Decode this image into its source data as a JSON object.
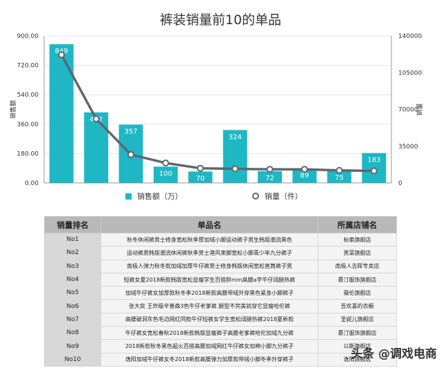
{
  "title": "裤装销量前10的单品",
  "colors": {
    "bar": "#1fb7c4",
    "line": "#5f6670",
    "axis": "#999999"
  },
  "chart_data": {
    "type": "bar",
    "title": "裤装销量前10的单品",
    "categories": [
      "No1",
      "No2",
      "No3",
      "No4",
      "No5",
      "No6",
      "No7",
      "No8",
      "No9",
      "No10"
    ],
    "series": [
      {
        "name": "销售额（万）",
        "type": "bar",
        "axis": "left",
        "values": [
          849,
          432,
          357,
          100,
          70,
          324,
          72,
          89,
          75,
          183
        ]
      },
      {
        "name": "销量（件）",
        "type": "line",
        "axis": "right",
        "values": [
          122000,
          61000,
          27000,
          19000,
          14000,
          13500,
          13000,
          13000,
          12000,
          11500
        ]
      }
    ],
    "ylabel": "销售额",
    "y2label": "销量",
    "ylim": [
      0,
      900
    ],
    "y2lim": [
      0,
      140000
    ],
    "yticks": [
      "0.00",
      "180.00",
      "360.00",
      "540.00",
      "720.00",
      "900.00"
    ],
    "y2ticks": [
      "0",
      "35000",
      "70000",
      "105000",
      "140000"
    ],
    "legend": "bottom"
  },
  "table": {
    "headers": [
      "销量排名",
      "单品名",
      "所属店铺名"
    ],
    "rows": [
      [
        "No1",
        "秋冬休闲裤男士修身宽松秋季厚加绒小脚运动裤子男生韩版潮流黑色",
        "标索旗舰店"
      ],
      [
        "No2",
        "运动裤男韩版潮流休闲裤秋季男士港风束脚宽松小脚青少年九分裤子",
        "男菜旗舰店"
      ],
      [
        "No3",
        "南极人弹力秋冬款加绒加厚牛仔裤男士修身韩版休闲宽松直筒裤子男",
        "南极人吉晖专卖店"
      ],
      [
        "No4",
        "短裤女夏2018新款韩版宽松显瘦学生百搭胖mm高腰a字牛仔阔腿热裤",
        "慕汀服饰旗舰店"
      ],
      [
        "No5",
        "加绒牛仔裤女加厚款秋冬季2018新款高腰带绒外穿黑色紧身小脚裤子",
        "薇伦旗舰店"
      ],
      [
        "No6",
        "张大奕 王炸级辛普森3色牛仔老爹裤 腿型不完美就穿它显瘦哈伦裤",
        "吾欢喜的衣橱"
      ],
      [
        "No7",
        "高腰破洞灰色毛边网红同款牛仔短裤女学生宽松阔腿热裤2018夏新款",
        "圣妮儿旗舰店"
      ],
      [
        "No8",
        "牛仔裤女宽松春秋2018新款韩版显瘦裤子高腰老爹裤哈伦加绒九分裤",
        "慕汀服饰旗舰店"
      ],
      [
        "No9",
        "2018新款秋冬黑色超火百搭高腰加绒网红牛仔裤女加棉小脚九分裤子",
        "以斯旗舰店"
      ],
      [
        "No10",
        "逸阳加绒牛仔裤女冬2018新款高腰弹力加厚款带绒小脚冬季外穿裤子",
        "逸阳旗舰店"
      ]
    ]
  },
  "watermark": "头条 @调戏电商"
}
